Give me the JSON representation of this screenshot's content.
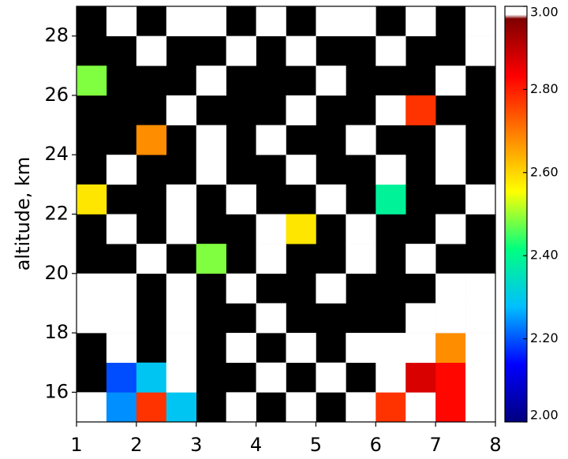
{
  "chart_data": {
    "type": "heatmap",
    "ylabel": "altitude,  km",
    "xlim": [
      1,
      8
    ],
    "ylim": [
      15,
      29
    ],
    "xticks": [
      1,
      2,
      3,
      4,
      5,
      6,
      7,
      8
    ],
    "yticks": [
      16,
      18,
      20,
      22,
      24,
      26,
      28
    ],
    "x_edges": [
      1,
      1.5,
      2,
      2.5,
      3,
      3.5,
      4,
      4.5,
      5,
      5.5,
      6,
      6.5,
      7,
      7.5,
      8
    ],
    "y_edges": [
      15,
      16,
      17,
      18,
      19,
      20,
      21,
      22,
      23,
      24,
      25,
      26,
      27,
      28,
      29
    ],
    "z": [
      [
        3.05,
        2.25,
        2.8,
        2.3,
        null,
        3.05,
        null,
        3.05,
        null,
        3.05,
        2.8,
        3.05,
        2.85,
        3.05
      ],
      [
        null,
        2.2,
        2.3,
        3.05,
        null,
        null,
        3.05,
        null,
        3.05,
        null,
        3.05,
        2.9,
        2.85,
        3.05
      ],
      [
        null,
        3.05,
        null,
        3.05,
        null,
        3.05,
        null,
        3.05,
        null,
        3.05,
        3.05,
        3.05,
        2.7,
        3.05
      ],
      [
        3.05,
        3.05,
        null,
        3.05,
        null,
        null,
        3.05,
        null,
        null,
        null,
        null,
        3.05,
        3.05,
        3.05
      ],
      [
        3.05,
        3.05,
        null,
        3.05,
        null,
        3.05,
        null,
        null,
        3.05,
        null,
        null,
        null,
        3.05,
        3.05
      ],
      [
        null,
        null,
        3.05,
        null,
        2.5,
        null,
        3.05,
        null,
        null,
        3.05,
        null,
        3.05,
        null,
        null
      ],
      [
        null,
        3.05,
        null,
        3.05,
        null,
        null,
        3.05,
        2.6,
        null,
        3.05,
        null,
        null,
        3.05,
        null
      ],
      [
        2.6,
        null,
        null,
        3.05,
        null,
        3.05,
        null,
        null,
        3.05,
        null,
        2.4,
        null,
        null,
        3.05
      ],
      [
        null,
        3.05,
        null,
        null,
        3.05,
        null,
        null,
        3.05,
        null,
        null,
        3.05,
        null,
        3.05,
        null
      ],
      [
        null,
        null,
        2.7,
        null,
        3.05,
        null,
        3.05,
        null,
        null,
        3.05,
        null,
        null,
        3.05,
        null
      ],
      [
        null,
        null,
        null,
        3.05,
        null,
        null,
        null,
        3.05,
        null,
        null,
        3.05,
        2.8,
        null,
        null
      ],
      [
        2.5,
        null,
        null,
        null,
        3.05,
        null,
        null,
        null,
        3.05,
        null,
        null,
        null,
        3.05,
        null
      ],
      [
        null,
        null,
        3.05,
        null,
        null,
        3.05,
        null,
        3.05,
        null,
        null,
        3.05,
        null,
        null,
        3.05
      ],
      [
        null,
        3.05,
        null,
        3.05,
        3.05,
        null,
        3.05,
        null,
        3.05,
        3.05,
        null,
        3.05,
        null,
        3.05
      ]
    ],
    "background": "#000000",
    "over_color": "#ffffff",
    "colormap": [
      "#00007f",
      "#0000ff",
      "#00bfff",
      "#00ff80",
      "#ffff00",
      "#ff8000",
      "#ff0000",
      "#7f0000"
    ],
    "colorbar_lim": [
      2,
      3
    ],
    "colorbar_ticks": [
      {
        "value": 2,
        "label": "2.00"
      },
      {
        "value": 2.2,
        "label": "2.20"
      },
      {
        "value": 2.4,
        "label": "2.40"
      },
      {
        "value": 2.6,
        "label": "2.60"
      },
      {
        "value": 2.8,
        "label": "2.80"
      },
      {
        "value": 3,
        "label": "3.00"
      }
    ]
  }
}
